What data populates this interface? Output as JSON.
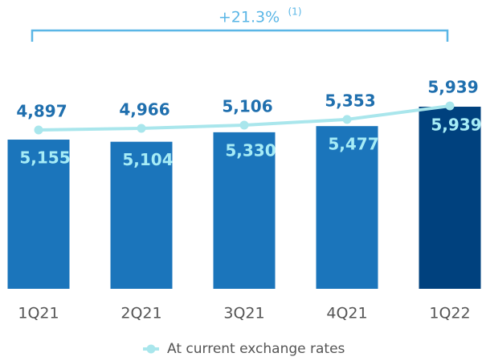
{
  "chart_data": {
    "type": "bar_line",
    "categories": [
      "1Q21",
      "2Q21",
      "3Q21",
      "4Q21",
      "1Q22"
    ],
    "series": [
      {
        "type": "bar",
        "colors": [
          "#1b75bb",
          "#1b75bb",
          "#1b75bb",
          "#1b75bb",
          "#00417e"
        ],
        "values": [
          5155,
          5104,
          5330,
          5477,
          5939
        ],
        "value_labels": [
          "5,155",
          "5,104",
          "5,330",
          "5,477",
          "5,939"
        ]
      },
      {
        "type": "line",
        "name": "At current exchange rates",
        "color": "#a9e6ec",
        "axis": "y2",
        "values": [
          4897,
          4966,
          5106,
          5353,
          5939
        ],
        "value_labels": [
          "4,897",
          "4,966",
          "5,106",
          "5,353",
          "5,939"
        ]
      }
    ],
    "ylim": [
      1600,
      6570
    ],
    "y2lim": [
      -1980,
      7050
    ],
    "annotation": {
      "text": "+21.3%",
      "note": "(1)",
      "color": "#5ab6e6"
    }
  }
}
